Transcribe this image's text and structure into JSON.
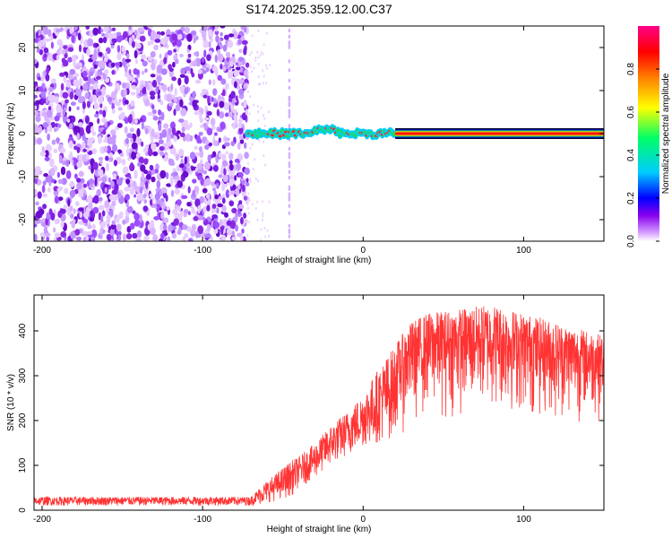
{
  "title": "S174.2025.359.12.00.C37",
  "chart_data": [
    {
      "type": "heatmap",
      "xlabel": "Height of straight line (km)",
      "ylabel": "Frequency (Hz)",
      "xlim": [
        -205,
        150
      ],
      "ylim": [
        -25,
        25
      ],
      "xticks": [
        -200,
        -100,
        0,
        100
      ],
      "yticks": [
        -20,
        -10,
        0,
        10,
        20
      ],
      "colorbar": {
        "label": "Normalized spectral amplitude",
        "range": [
          0,
          1
        ],
        "ticks": [
          0.0,
          0.2,
          0.4,
          0.6,
          0.8
        ],
        "colormap": [
          "#ffffff",
          "#cc88ff",
          "#8800ee",
          "#0000ff",
          "#00ccff",
          "#00ff66",
          "#ffff00",
          "#ff8800",
          "#ff0000",
          "#ff0088"
        ]
      },
      "regions": {
        "noise_x_range": [
          -205,
          -72
        ],
        "noise_freq_range": [
          -25,
          25
        ],
        "ridge_x_range": [
          -72,
          150
        ],
        "ridge_freq_center": 0,
        "steady_signal_start_x": 20
      }
    },
    {
      "type": "line",
      "xlabel": "Height of straight line (km)",
      "ylabel": "SNR (10 * v/v)",
      "xlim": [
        -205,
        150
      ],
      "ylim": [
        0,
        480
      ],
      "xticks": [
        -200,
        -100,
        0,
        100
      ],
      "yticks": [
        0,
        100,
        200,
        300,
        400
      ],
      "color": "#ff3333",
      "envelope": {
        "x": [
          -205,
          -150,
          -100,
          -70,
          -62,
          -55,
          -45,
          -40,
          -30,
          -20,
          -10,
          0,
          10,
          20,
          30,
          40,
          60,
          80,
          100,
          120,
          140,
          150
        ],
        "upper": [
          30,
          30,
          30,
          30,
          60,
          80,
          110,
          120,
          150,
          190,
          220,
          260,
          320,
          370,
          420,
          440,
          450,
          460,
          440,
          420,
          400,
          390
        ],
        "lower": [
          10,
          10,
          10,
          10,
          15,
          20,
          30,
          50,
          70,
          100,
          120,
          140,
          150,
          160,
          170,
          190,
          190,
          200,
          190,
          180,
          190,
          200
        ]
      }
    }
  ]
}
